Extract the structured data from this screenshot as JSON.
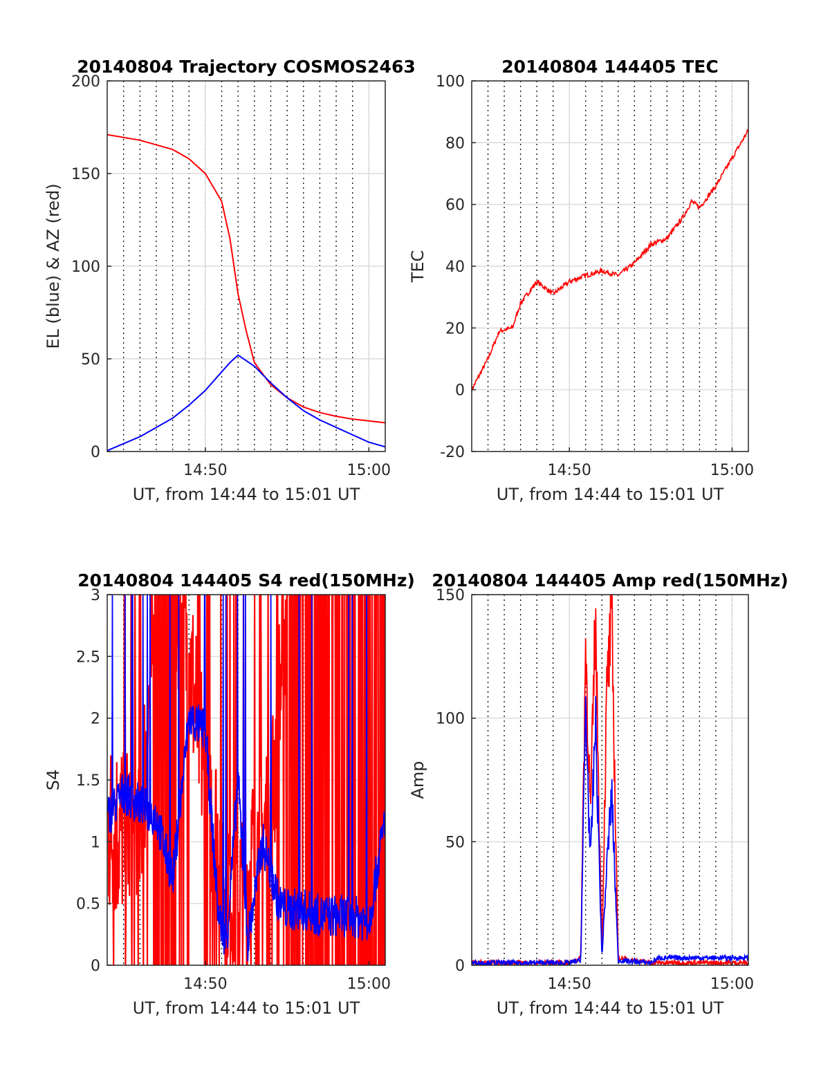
{
  "chart_data": [
    {
      "type": "line",
      "title": "20140804 Trajectory COSMOS2463",
      "xlabel": "UT, from 14:44 to 15:01 UT",
      "ylabel": "EL (blue) & AZ (red)",
      "xlim": [
        "14:44",
        "15:01"
      ],
      "ylim": [
        0,
        200
      ],
      "yticks": [
        "0",
        "50",
        "100",
        "150",
        "200"
      ],
      "xticks": [
        "14:50",
        "15:00"
      ],
      "grid": true,
      "series": [
        {
          "color": "#ff0000",
          "x": [
            "14:44",
            "14:46",
            "14:48",
            "14:49",
            "14:50",
            "14:51",
            "14:51.5",
            "14:52",
            "14:52.5",
            "14:53",
            "14:54",
            "14:55",
            "14:56",
            "14:57",
            "14:58",
            "14:59",
            "15:00",
            "15:01"
          ],
          "values": [
            171,
            168,
            163,
            158,
            150,
            135,
            115,
            85,
            65,
            48,
            36,
            29,
            24,
            21,
            19,
            17.5,
            16.5,
            15.5
          ]
        },
        {
          "color": "#0000ff",
          "x": [
            "14:44",
            "14:46",
            "14:48",
            "14:49",
            "14:50",
            "14:51",
            "14:51.5",
            "14:52",
            "14:53",
            "14:54",
            "14:55",
            "14:56",
            "14:57",
            "14:58",
            "14:59",
            "15:00",
            "15:01"
          ],
          "values": [
            0.5,
            8,
            18,
            25,
            33,
            43,
            48,
            52,
            46,
            37,
            29,
            22,
            17,
            13,
            9,
            5,
            2.5
          ]
        }
      ]
    },
    {
      "type": "line",
      "title": "20140804 144405 TEC",
      "xlabel": "UT, from 14:44 to 15:01 UT",
      "ylabel": "TEC",
      "xlim": [
        "14:44",
        "15:01"
      ],
      "ylim": [
        -20,
        100
      ],
      "yticks": [
        "-20",
        "0",
        "20",
        "40",
        "60",
        "80",
        "100"
      ],
      "xticks": [
        "14:50",
        "15:00"
      ],
      "grid": true,
      "series": [
        {
          "color": "#ff0000",
          "x": [
            "14:44",
            "14:45",
            "14:45.7",
            "14:46.5",
            "14:47",
            "14:48",
            "14:49",
            "14:49.5",
            "14:50",
            "14:51",
            "14:52",
            "14:53",
            "14:54",
            "14:55",
            "14:56",
            "14:57",
            "14:57.5",
            "14:58",
            "14:59",
            "15:00",
            "15:01"
          ],
          "values": [
            0,
            10,
            19,
            20,
            28,
            35,
            31,
            33,
            35,
            37,
            38.5,
            37,
            41,
            47,
            49,
            56,
            61,
            59,
            66,
            75,
            84
          ]
        }
      ]
    },
    {
      "type": "line",
      "title": "20140804 144405 S4 red(150MHz)",
      "xlabel": "UT, from 14:44 to 15:01 UT",
      "ylabel": "S4",
      "xlim": [
        "14:44",
        "15:01"
      ],
      "ylim": [
        0,
        3
      ],
      "yticks": [
        "0",
        "0.5",
        "1",
        "1.5",
        "2",
        "2.5",
        "3"
      ],
      "xticks": [
        "14:50",
        "15:00"
      ],
      "grid": true,
      "series": [
        {
          "color": "#ff0000",
          "x": [
            "14:44",
            "14:45",
            "14:46",
            "14:47",
            "14:48",
            "14:49",
            "14:50",
            "14:51",
            "14:52",
            "14:53",
            "14:54",
            "14:55",
            "14:56",
            "14:57",
            "14:58",
            "14:59",
            "15:00",
            "15:01"
          ],
          "values": [
            1.1,
            1.1,
            1.0,
            3.0,
            3.0,
            2.5,
            1.5,
            0.85,
            0.5,
            0.9,
            1.2,
            3.0,
            3.0,
            3.0,
            3.0,
            3.0,
            3.0,
            3.0
          ]
        },
        {
          "color": "#0000ff",
          "x": [
            "14:44",
            "14:45",
            "14:46",
            "14:47",
            "14:48",
            "14:49",
            "14:50",
            "14:50.8",
            "14:51.3",
            "14:52",
            "14:52.6",
            "14:53.5",
            "14:54.5",
            "14:55",
            "14:56",
            "14:57",
            "14:58",
            "14:59",
            "15:00",
            "15:01"
          ],
          "values": [
            1.2,
            1.4,
            1.3,
            1.2,
            0.7,
            2.0,
            1.9,
            0.4,
            0.2,
            1.5,
            0.2,
            1.0,
            0.5,
            0.45,
            0.45,
            0.4,
            0.4,
            0.4,
            0.35,
            1.2
          ]
        }
      ]
    },
    {
      "type": "line",
      "title": "20140804 144405 Amp red(150MHz)",
      "xlabel": "UT, from 14:44 to 15:01 UT",
      "ylabel": "Amp",
      "xlim": [
        "14:44",
        "15:01"
      ],
      "ylim": [
        0,
        150
      ],
      "yticks": [
        "0",
        "50",
        "100",
        "150"
      ],
      "xticks": [
        "14:50",
        "15:00"
      ],
      "grid": true,
      "series": [
        {
          "color": "#ff0000",
          "x": [
            "14:44",
            "14:50",
            "14:50.7",
            "14:51",
            "14:51.3",
            "14:51.6",
            "14:52",
            "14:52.3",
            "14:52.6",
            "14:53",
            "14:55",
            "15:01"
          ],
          "values": [
            1,
            1,
            3,
            130,
            60,
            140,
            5,
            110,
            140,
            3,
            1,
            1
          ]
        },
        {
          "color": "#0000ff",
          "x": [
            "14:44",
            "14:50",
            "14:50.7",
            "14:51",
            "14:51.3",
            "14:51.6",
            "14:52",
            "14:52.3",
            "14:52.6",
            "14:53",
            "14:55",
            "14:55.5",
            "14:58",
            "15:01"
          ],
          "values": [
            1,
            1,
            2,
            105,
            40,
            100,
            3,
            40,
            70,
            2,
            1,
            3,
            3,
            3
          ]
        }
      ]
    }
  ]
}
